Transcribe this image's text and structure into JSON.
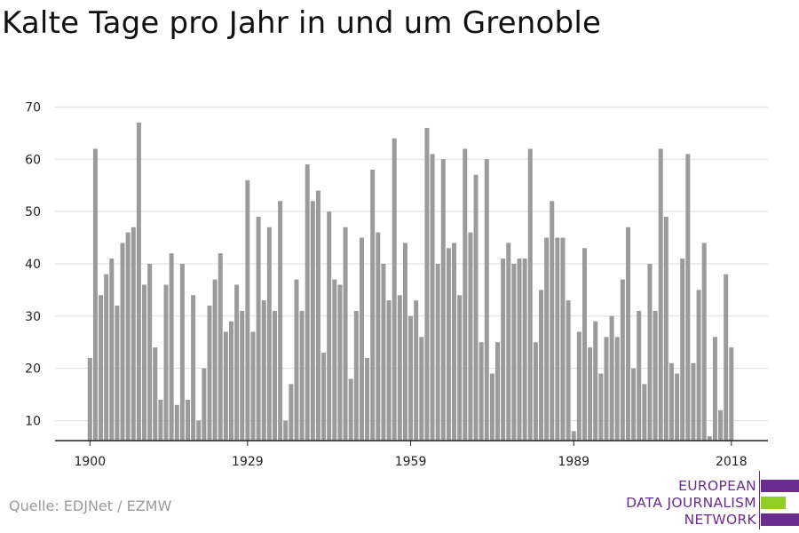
{
  "title": "Kalte Tage pro Jahr in und um Grenoble",
  "source": "Quelle: EDJNet / EZMW",
  "logo": {
    "lines": [
      "EUROPEAN",
      "DATA JOURNALISM",
      "NETWORK"
    ],
    "colors": {
      "purple": "#6b2c91",
      "green": "#8fce22"
    }
  },
  "colors": {
    "bar": "#9b9b9b",
    "grid": "#dddddd",
    "axis": "#222222"
  },
  "chart_data": {
    "type": "bar",
    "x_start": 1900,
    "x": [
      1900,
      1901,
      1902,
      1903,
      1904,
      1905,
      1906,
      1907,
      1908,
      1909,
      1910,
      1911,
      1912,
      1913,
      1914,
      1915,
      1916,
      1917,
      1918,
      1919,
      1920,
      1921,
      1922,
      1923,
      1924,
      1925,
      1926,
      1927,
      1928,
      1929,
      1930,
      1931,
      1932,
      1933,
      1934,
      1935,
      1936,
      1937,
      1938,
      1939,
      1940,
      1941,
      1942,
      1943,
      1944,
      1945,
      1946,
      1947,
      1948,
      1949,
      1950,
      1951,
      1952,
      1953,
      1954,
      1955,
      1956,
      1957,
      1958,
      1959,
      1960,
      1961,
      1962,
      1963,
      1964,
      1965,
      1966,
      1967,
      1968,
      1969,
      1970,
      1971,
      1972,
      1973,
      1974,
      1975,
      1976,
      1977,
      1978,
      1979,
      1980,
      1981,
      1982,
      1983,
      1984,
      1985,
      1986,
      1987,
      1988,
      1989,
      1990,
      1991,
      1992,
      1993,
      1994,
      1995,
      1996,
      1997,
      1998,
      1999,
      2000,
      2001,
      2002,
      2003,
      2004,
      2005,
      2006,
      2007,
      2008,
      2009,
      2010,
      2011,
      2012,
      2013,
      2014,
      2015,
      2016,
      2017,
      2018
    ],
    "values": [
      22,
      62,
      34,
      38,
      41,
      32,
      44,
      46,
      47,
      67,
      36,
      40,
      24,
      14,
      36,
      42,
      13,
      40,
      14,
      34,
      10,
      20,
      32,
      37,
      42,
      27,
      29,
      36,
      31,
      56,
      27,
      49,
      33,
      47,
      31,
      52,
      10,
      17,
      37,
      31,
      59,
      52,
      54,
      23,
      50,
      37,
      36,
      47,
      18,
      31,
      45,
      22,
      58,
      46,
      40,
      33,
      64,
      34,
      44,
      30,
      33,
      26,
      66,
      61,
      40,
      60,
      43,
      44,
      34,
      62,
      46,
      57,
      25,
      60,
      19,
      25,
      41,
      44,
      40,
      41,
      41,
      62,
      25,
      35,
      45,
      52,
      45,
      45,
      33,
      8,
      27,
      43,
      24,
      29,
      19,
      26,
      30,
      26,
      37,
      47,
      20,
      31,
      17,
      40,
      31,
      62,
      49,
      21,
      19,
      41,
      61,
      21,
      35,
      44,
      7,
      26,
      12,
      38,
      24
    ],
    "xticks": [
      1900,
      1929,
      1959,
      1989,
      2018
    ],
    "yticks": [
      10,
      20,
      30,
      40,
      50,
      60,
      70
    ],
    "ylim": [
      6,
      70
    ],
    "grid": true,
    "xlabel": "",
    "ylabel": ""
  }
}
